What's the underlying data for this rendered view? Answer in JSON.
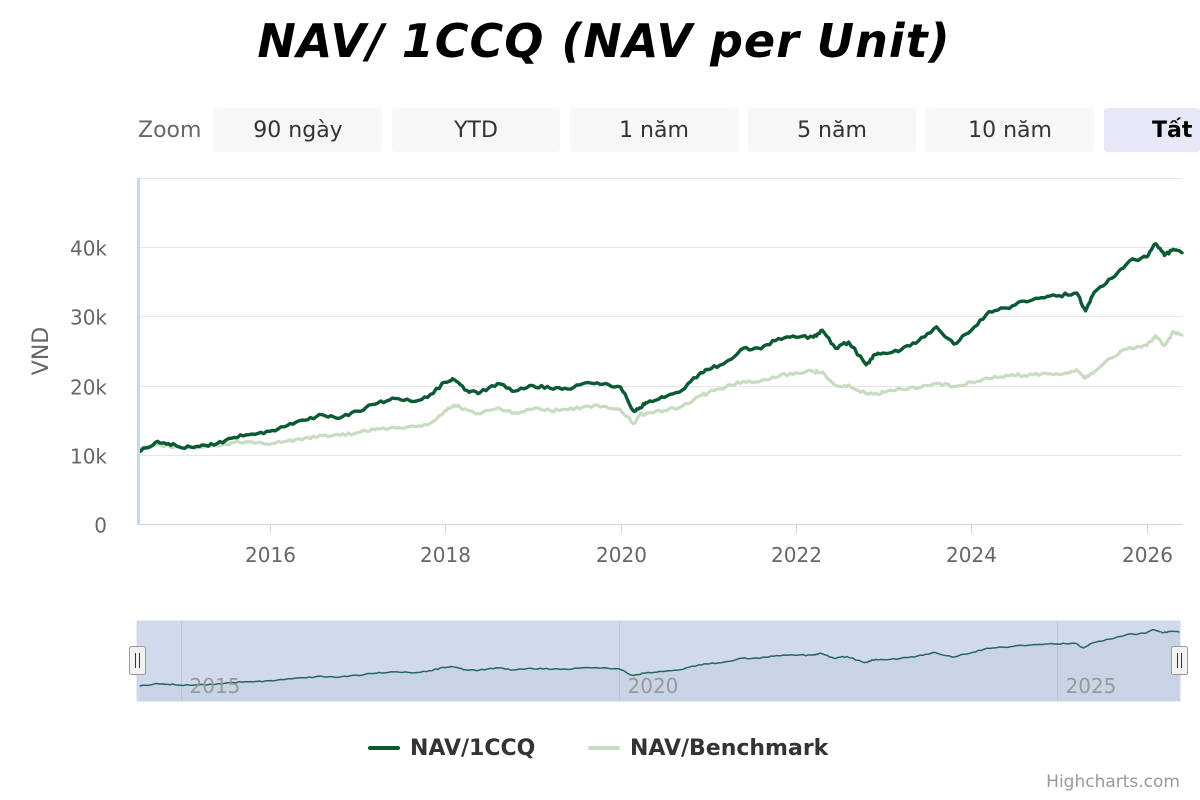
{
  "title": "NAV/ 1CCQ (NAV per Unit)",
  "zoom": {
    "label": "Zoom",
    "buttons": [
      "90 ngày",
      "YTD",
      "1 năm",
      "5 năm",
      "10 năm",
      "Tất"
    ],
    "active_index": 5
  },
  "legend": {
    "items": [
      {
        "label": "NAV/1CCQ",
        "color": "#0b5a33"
      },
      {
        "label": "NAV/Benchmark",
        "color": "#c7dcc0"
      }
    ]
  },
  "credits": "Highcharts.com",
  "navigator": {
    "tick_labels": [
      "2015",
      "2020",
      "2025"
    ],
    "tick_values": [
      2015.0,
      2020.0,
      2025.0
    ],
    "range": [
      2014.5,
      2026.4
    ],
    "selected_range": [
      2014.5,
      2026.4
    ]
  },
  "chart_data": {
    "type": "line",
    "title": "NAV/ 1CCQ (NAV per Unit)",
    "xlabel": "",
    "ylabel": "VND",
    "xlim": [
      2014.5,
      2026.4
    ],
    "ylim": [
      0,
      50000
    ],
    "x_ticks": [
      2016,
      2018,
      2020,
      2022,
      2024,
      2026
    ],
    "x_tick_labels": [
      "2016",
      "2018",
      "2020",
      "2022",
      "2024",
      "2026"
    ],
    "y_ticks": [
      0,
      10000,
      20000,
      30000,
      40000
    ],
    "y_tick_labels": [
      "0",
      "10k",
      "20k",
      "30k",
      "40k"
    ],
    "grid": true,
    "legend_position": "bottom-center",
    "series": [
      {
        "name": "NAV/1CCQ",
        "color": "#0b5a33",
        "x": [
          2014.53,
          2014.7,
          2014.85,
          2015.0,
          2015.2,
          2015.4,
          2015.6,
          2015.8,
          2016.0,
          2016.2,
          2016.4,
          2016.6,
          2016.8,
          2017.0,
          2017.2,
          2017.4,
          2017.6,
          2017.8,
          2018.0,
          2018.1,
          2018.25,
          2018.4,
          2018.6,
          2018.8,
          2019.0,
          2019.2,
          2019.4,
          2019.6,
          2019.8,
          2020.0,
          2020.15,
          2020.22,
          2020.3,
          2020.5,
          2020.7,
          2020.9,
          2021.0,
          2021.2,
          2021.4,
          2021.6,
          2021.8,
          2022.0,
          2022.2,
          2022.3,
          2022.45,
          2022.6,
          2022.8,
          2022.9,
          2023.0,
          2023.2,
          2023.4,
          2023.6,
          2023.8,
          2024.0,
          2024.2,
          2024.4,
          2024.6,
          2024.8,
          2025.0,
          2025.2,
          2025.3,
          2025.4,
          2025.6,
          2025.8,
          2026.0,
          2026.1,
          2026.2,
          2026.3,
          2026.4
        ],
        "values": [
          10500,
          11800,
          11600,
          11000,
          11200,
          11600,
          12500,
          13000,
          13400,
          14200,
          15000,
          15800,
          15300,
          16300,
          17300,
          18200,
          17800,
          18300,
          20500,
          20900,
          19300,
          19000,
          20300,
          19200,
          20000,
          19600,
          19500,
          20400,
          20200,
          19800,
          16300,
          16800,
          17500,
          18300,
          19300,
          21700,
          22300,
          23400,
          25400,
          25300,
          26800,
          27000,
          27000,
          28000,
          25400,
          26300,
          23000,
          24500,
          24700,
          25200,
          26500,
          28500,
          26000,
          28000,
          30700,
          31200,
          32200,
          32700,
          33000,
          33400,
          30800,
          33500,
          35500,
          38000,
          38600,
          40500,
          38800,
          39700,
          39200
        ]
      },
      {
        "name": "NAV/Benchmark",
        "color": "#c7dcc0",
        "x": [
          2014.53,
          2014.7,
          2014.85,
          2015.0,
          2015.2,
          2015.4,
          2015.6,
          2015.8,
          2016.0,
          2016.2,
          2016.4,
          2016.6,
          2016.8,
          2017.0,
          2017.2,
          2017.4,
          2017.6,
          2017.8,
          2018.0,
          2018.1,
          2018.25,
          2018.4,
          2018.6,
          2018.8,
          2019.0,
          2019.2,
          2019.4,
          2019.6,
          2019.8,
          2020.0,
          2020.15,
          2020.22,
          2020.3,
          2020.5,
          2020.7,
          2020.9,
          2021.0,
          2021.2,
          2021.4,
          2021.6,
          2021.8,
          2022.0,
          2022.2,
          2022.3,
          2022.45,
          2022.6,
          2022.8,
          2022.9,
          2023.0,
          2023.2,
          2023.4,
          2023.6,
          2023.8,
          2024.0,
          2024.2,
          2024.4,
          2024.6,
          2024.8,
          2025.0,
          2025.2,
          2025.3,
          2025.4,
          2025.6,
          2025.8,
          2026.0,
          2026.1,
          2026.2,
          2026.3,
          2026.4
        ],
        "values": [
          10800,
          11400,
          11300,
          11000,
          11100,
          11300,
          11800,
          11900,
          11500,
          12000,
          12400,
          12800,
          12800,
          13200,
          13600,
          14000,
          14100,
          14300,
          16400,
          17200,
          16500,
          15900,
          16800,
          16100,
          16600,
          16400,
          16500,
          17000,
          17000,
          16500,
          14500,
          15800,
          16000,
          16400,
          17000,
          18500,
          19000,
          19800,
          20600,
          20700,
          21300,
          21900,
          22000,
          22000,
          20000,
          20100,
          18800,
          18800,
          19000,
          19500,
          19700,
          20300,
          19900,
          20500,
          21000,
          21500,
          21500,
          21700,
          21600,
          22300,
          21100,
          22000,
          24000,
          25500,
          25800,
          27200,
          25800,
          27800,
          27300
        ]
      }
    ]
  }
}
